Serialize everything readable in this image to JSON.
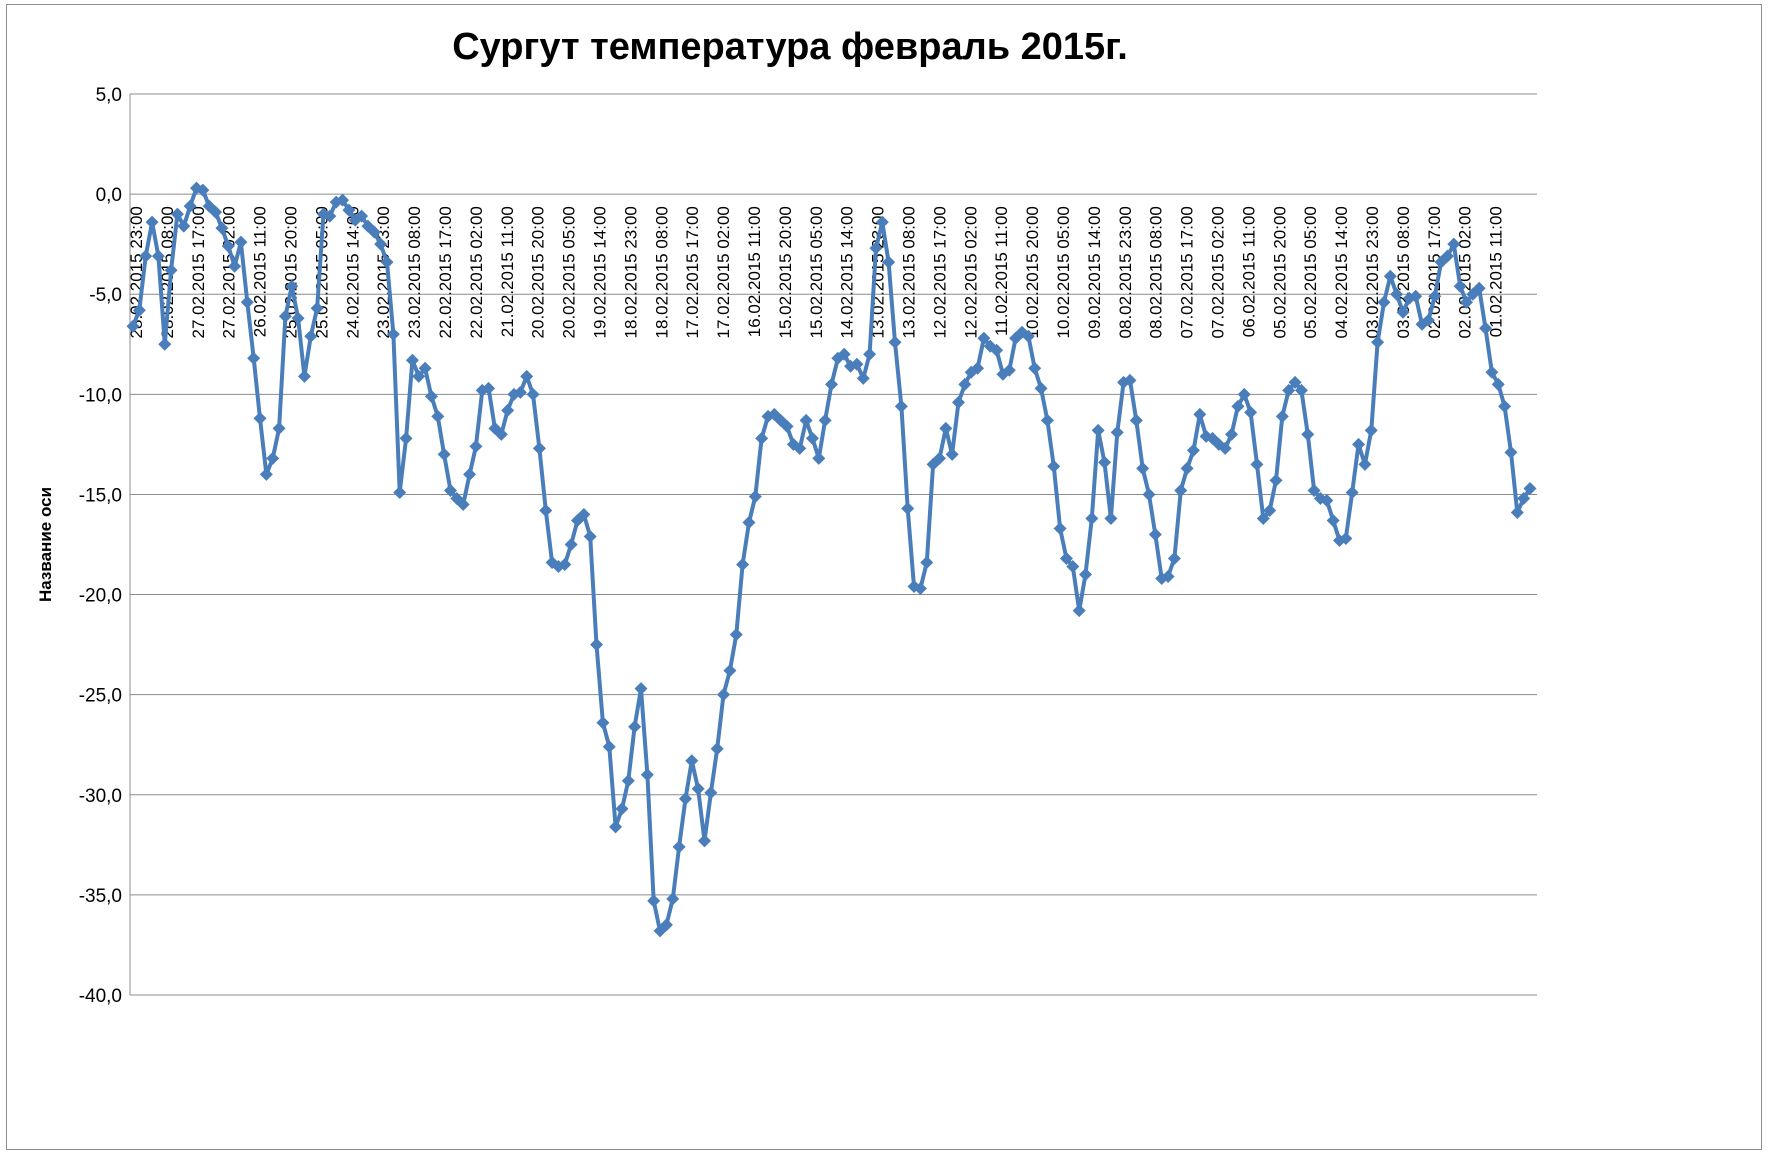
{
  "chart_data": {
    "type": "line",
    "title": "Сургут температура февраль 2015г.",
    "ylabel": "Название оси",
    "xlabel": "",
    "ylim": [
      -40,
      5
    ],
    "yticks": [
      "5,0",
      "0,0",
      "-5,0",
      "-10,0",
      "-15,0",
      "-20,0",
      "-25,0",
      "-30,0",
      "-35,0",
      "-40,0"
    ],
    "grid": true,
    "legend": "none",
    "line_color": "#4a7ebb",
    "x_order": "descending",
    "xticks": [
      "28.02.2015 23:00",
      "28.02.2015 08:00",
      "27.02.2015 17:00",
      "27.02.2015 02:00",
      "26.02.2015 11:00",
      "25.02.2015 20:00",
      "25.02.2015 05:00",
      "24.02.2015 14:00",
      "23.02.2015 23:00",
      "23.02.2015 08:00",
      "22.02.2015 17:00",
      "22.02.2015 02:00",
      "21.02.2015 11:00",
      "20.02.2015 20:00",
      "20.02.2015 05:00",
      "19.02.2015 14:00",
      "18.02.2015 23:00",
      "18.02.2015 08:00",
      "17.02.2015 17:00",
      "17.02.2015 02:00",
      "16.02.2015 11:00",
      "15.02.2015 20:00",
      "15.02.2015 05:00",
      "14.02.2015 14:00",
      "13.02.2015 23:00",
      "13.02.2015 08:00",
      "12.02.2015 17:00",
      "12.02.2015 02:00",
      "11.02.2015 11:00",
      "10.02.2015 20:00",
      "10.02.2015 05:00",
      "09.02.2015 14:00",
      "08.02.2015 23:00",
      "08.02.2015 08:00",
      "07.02.2015 17:00",
      "07.02.2015 02:00",
      "06.02.2015 11:00",
      "05.02.2015 20:00",
      "05.02.2015 05:00",
      "04.02.2015 14:00",
      "03.02.2015 23:00",
      "03.02.2015 08:00",
      "02.02.2015 17:00",
      "02.02.2015 02:00",
      "01.02.2015 11:00"
    ],
    "series": [
      {
        "values": [
          -6.6,
          -5.8,
          -3.1,
          -1.4,
          -3.1,
          -7.5,
          -3.8,
          -1.0,
          -1.6,
          -0.6,
          0.3,
          0.2,
          -0.6,
          -0.9,
          -1.7,
          -2.6,
          -3.6,
          -2.4,
          -5.4,
          -8.2,
          -11.2,
          -14.0,
          -13.2,
          -11.7,
          -6.1,
          -4.6,
          -6.2,
          -9.1,
          -7.1,
          -5.7,
          -1.0,
          -1.1,
          -0.4,
          -0.3,
          -0.8,
          -1.3,
          -1.1,
          -1.6,
          -1.9,
          -2.5,
          -3.4,
          -7.0,
          -14.9,
          -12.2,
          -8.3,
          -9.1,
          -8.7,
          -10.1,
          -11.1,
          -13.0,
          -14.8,
          -15.2,
          -15.5,
          -14.0,
          -12.6,
          -9.8,
          -9.7,
          -11.7,
          -12.0,
          -10.8,
          -10.0,
          -9.9,
          -9.1,
          -10.0,
          -12.7,
          -15.8,
          -18.4,
          -18.6,
          -18.5,
          -17.5,
          -16.3,
          -16.0,
          -17.1,
          -22.5,
          -26.4,
          -27.6,
          -31.6,
          -30.7,
          -29.3,
          -26.6,
          -24.7,
          -29.0,
          -35.3,
          -36.8,
          -36.5,
          -35.2,
          -32.6,
          -30.2,
          -28.3,
          -29.7,
          -32.3,
          -29.9,
          -27.7,
          -25.0,
          -23.8,
          -22.0,
          -18.5,
          -16.4,
          -15.1,
          -12.2,
          -11.1,
          -11.0,
          -11.3,
          -11.6,
          -12.5,
          -12.7,
          -11.3,
          -12.2,
          -13.2,
          -11.3,
          -9.5,
          -8.2,
          -8.0,
          -8.6,
          -8.5,
          -9.2,
          -8.0,
          -2.7,
          -1.4,
          -3.4,
          -7.4,
          -10.6,
          -15.7,
          -19.6,
          -19.7,
          -18.4,
          -13.5,
          -13.2,
          -11.7,
          -13.0,
          -10.4,
          -9.5,
          -8.9,
          -8.7,
          -7.2,
          -7.6,
          -7.8,
          -9.0,
          -8.8,
          -7.2,
          -6.9,
          -7.1,
          -8.7,
          -9.7,
          -11.3,
          -13.6,
          -16.7,
          -18.2,
          -18.6,
          -20.8,
          -19.0,
          -16.2,
          -11.8,
          -13.4,
          -16.2,
          -11.9,
          -9.4,
          -9.3,
          -11.3,
          -13.7,
          -15.0,
          -17.0,
          -19.2,
          -19.1,
          -18.2,
          -14.8,
          -13.7,
          -12.8,
          -11.0,
          -12.1,
          -12.2,
          -12.5,
          -12.7,
          -12.0,
          -10.6,
          -10.0,
          -10.9,
          -13.5,
          -16.2,
          -15.8,
          -14.3,
          -11.1,
          -9.8,
          -9.4,
          -9.8,
          -12.0,
          -14.8,
          -15.2,
          -15.3,
          -16.3,
          -17.3,
          -17.2,
          -14.9,
          -12.5,
          -13.5,
          -11.8,
          -7.4,
          -5.4,
          -4.1,
          -5.0,
          -5.9,
          -5.2,
          -5.1,
          -6.5,
          -6.3,
          -5.1,
          -3.4,
          -3.1,
          -2.5,
          -4.6,
          -5.4,
          -5.0,
          -4.7,
          -6.7,
          -8.9,
          -9.5,
          -10.6,
          -12.9,
          -15.9,
          -15.2,
          -14.7
        ]
      }
    ]
  }
}
